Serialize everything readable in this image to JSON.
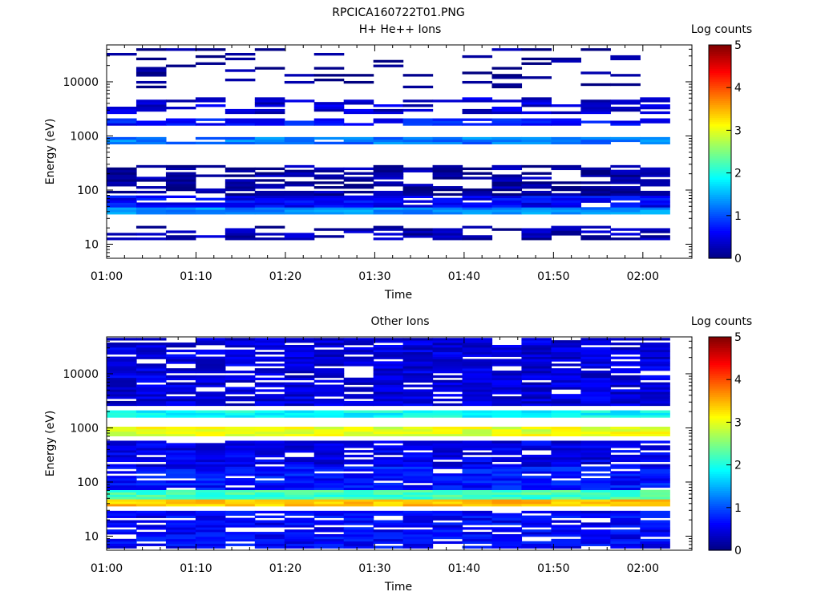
{
  "figure_title": "RPCICA160722T01.PNG",
  "chart_data": [
    {
      "type": "heatmap",
      "title": "H+ He++ Ions",
      "xlabel": "Time",
      "ylabel": "Energy (eV)",
      "x_ticks": [
        "01:00",
        "01:10",
        "01:20",
        "01:30",
        "01:40",
        "01:50",
        "02:00"
      ],
      "xlim": [
        "01:00",
        "02:03"
      ],
      "y_scale": "log",
      "y_ticks": [
        10,
        100,
        1000,
        10000
      ],
      "ylim": [
        5.5,
        48000
      ],
      "colorbar": {
        "label": "Log counts",
        "ticks": [
          0,
          1,
          2,
          3,
          4,
          5
        ],
        "range": [
          0,
          5
        ],
        "colormap": "jet"
      },
      "time_bins": 19,
      "energy_bins": 90,
      "bands": [
        {
          "energy_eV": [
            12,
            22
          ],
          "log_counts": 0.25,
          "fill": 0.55
        },
        {
          "energy_eV": [
            35,
            50
          ],
          "log_counts": 1.3,
          "fill": 1.0
        },
        {
          "energy_eV": [
            50,
            80
          ],
          "log_counts": 0.6,
          "fill": 0.9
        },
        {
          "energy_eV": [
            80,
            300
          ],
          "log_counts": 0.15,
          "fill": 0.6
        },
        {
          "energy_eV": [
            700,
            1000
          ],
          "log_counts": 1.2,
          "fill": 0.9
        },
        {
          "energy_eV": [
            1500,
            2200
          ],
          "log_counts": 0.7,
          "fill": 0.75
        },
        {
          "energy_eV": [
            2500,
            5000
          ],
          "log_counts": 0.4,
          "fill": 0.5
        },
        {
          "energy_eV": [
            8000,
            40000
          ],
          "log_counts": 0.05,
          "fill": 0.13
        }
      ]
    },
    {
      "type": "heatmap",
      "title": "Other Ions",
      "xlabel": "Time",
      "ylabel": "Energy (eV)",
      "x_ticks": [
        "01:00",
        "01:10",
        "01:20",
        "01:30",
        "01:40",
        "01:50",
        "02:00"
      ],
      "xlim": [
        "01:00",
        "02:03"
      ],
      "y_scale": "log",
      "y_ticks": [
        10,
        100,
        1000,
        10000
      ],
      "ylim": [
        5.5,
        48000
      ],
      "colorbar": {
        "label": "Log counts",
        "ticks": [
          0,
          1,
          2,
          3,
          4,
          5
        ],
        "range": [
          0,
          5
        ],
        "colormap": "jet"
      },
      "time_bins": 19,
      "energy_bins": 90,
      "bands": [
        {
          "energy_eV": [
            6,
            30
          ],
          "log_counts": 0.6,
          "fill": 0.85
        },
        {
          "energy_eV": [
            35,
            50
          ],
          "log_counts": 3.4,
          "fill": 1.0
        },
        {
          "energy_eV": [
            50,
            75
          ],
          "log_counts": 2.2,
          "fill": 1.0
        },
        {
          "energy_eV": [
            75,
            200
          ],
          "log_counts": 0.7,
          "fill": 0.9
        },
        {
          "energy_eV": [
            200,
            600
          ],
          "log_counts": 0.5,
          "fill": 0.85
        },
        {
          "energy_eV": [
            700,
            1100
          ],
          "log_counts": 3.0,
          "fill": 1.0
        },
        {
          "energy_eV": [
            1500,
            2200
          ],
          "log_counts": 1.9,
          "fill": 1.0
        },
        {
          "energy_eV": [
            2500,
            48000
          ],
          "log_counts": 0.45,
          "fill": 0.85
        }
      ]
    }
  ]
}
